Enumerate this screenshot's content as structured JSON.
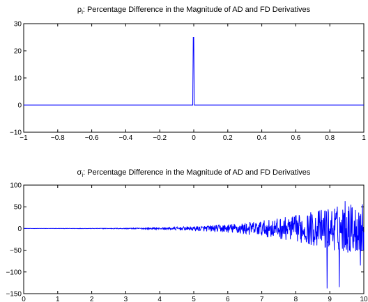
{
  "chart_data": [
    {
      "type": "line",
      "title_main": "ρ",
      "title_sub": "i",
      "title_rest": ": Percentage Difference in the Magnitude of AD and FD Derivatives",
      "xlabel": "",
      "ylabel": "",
      "xlim": [
        -1,
        1
      ],
      "ylim": [
        -10,
        30
      ],
      "xticks": [
        -1,
        -0.8,
        -0.6,
        -0.4,
        -0.2,
        0,
        0.2,
        0.4,
        0.6,
        0.8,
        1
      ],
      "xtick_labels": [
        "−1",
        "−0.8",
        "−0.6",
        "−0.4",
        "−0.2",
        "0",
        "0.2",
        "0.4",
        "0.6",
        "0.8",
        "1"
      ],
      "yticks": [
        -10,
        0,
        10,
        20,
        30
      ],
      "ytick_labels": [
        "−10",
        "0",
        "10",
        "20",
        "30"
      ],
      "grid": false,
      "color": "#0000ff",
      "series": [
        {
          "x": [
            -1,
            -0.006,
            -0.003,
            0.0,
            0.003,
            0.006,
            1
          ],
          "y": [
            0,
            0,
            25,
            25,
            0,
            0,
            0
          ]
        }
      ]
    },
    {
      "type": "line",
      "title_main": "σ",
      "title_sub": "i",
      "title_rest": ": Percentage Difference in the Magnitude of AD and FD Derivatives",
      "xlabel": "",
      "ylabel": "",
      "xlim": [
        0,
        10
      ],
      "ylim": [
        -150,
        100
      ],
      "xticks": [
        0,
        1,
        2,
        3,
        4,
        5,
        6,
        7,
        8,
        9,
        10
      ],
      "xtick_labels": [
        "0",
        "1",
        "2",
        "3",
        "4",
        "5",
        "6",
        "7",
        "8",
        "9",
        "10"
      ],
      "yticks": [
        -150,
        -100,
        -50,
        0,
        50,
        100
      ],
      "ytick_labels": [
        "−150",
        "−100",
        "−50",
        "0",
        "50",
        "100"
      ],
      "grid": false,
      "color": "#0000ff",
      "series": [
        {
          "x_start": 0,
          "x_end": 10,
          "samples": 1000,
          "description": "noise around 0 whose amplitude grows with x",
          "envelope_x": [
            0,
            2,
            3,
            4,
            5,
            6,
            7,
            8,
            9,
            10
          ],
          "envelope_y": [
            0.2,
            0.5,
            1,
            2,
            5,
            10,
            18,
            30,
            50,
            60
          ],
          "spikes": [
            {
              "x": 8.92,
              "y": -138
            },
            {
              "x": 9.28,
              "y": -135
            },
            {
              "x": 9.45,
              "y": 63
            },
            {
              "x": 9.62,
              "y": 55
            },
            {
              "x": 9.9,
              "y": -85
            }
          ]
        }
      ]
    }
  ]
}
